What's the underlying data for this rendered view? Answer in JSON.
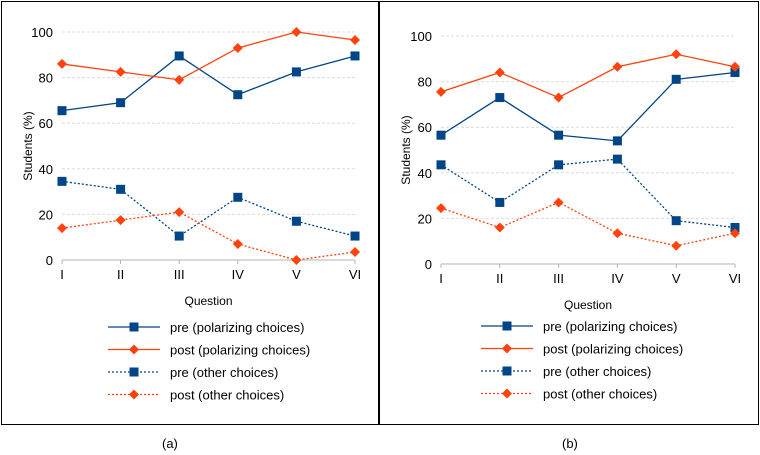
{
  "chart_data": [
    {
      "type": "line",
      "panel_label": "(a)",
      "xlabel": "Question",
      "ylabel": "Students (%)",
      "categories": [
        "I",
        "II",
        "III",
        "IV",
        "V",
        "VI"
      ],
      "ylim": [
        0,
        100
      ],
      "yticks": [
        0,
        20,
        40,
        60,
        80,
        100
      ],
      "grid": true,
      "legend_position": "bottom",
      "series": [
        {
          "name": "pre (polarizing choices)",
          "color": "#004586",
          "marker": "square",
          "dash": "solid",
          "values": [
            65.5,
            69,
            89.5,
            72.5,
            82.5,
            89.5
          ]
        },
        {
          "name": "post (polarizing choices)",
          "color": "#ff420e",
          "marker": "diamond",
          "dash": "solid",
          "values": [
            86,
            82.5,
            79,
            93,
            100,
            96.5
          ]
        },
        {
          "name": "pre (other choices)",
          "color": "#004586",
          "marker": "square",
          "dash": "dotted",
          "values": [
            34.5,
            31,
            10.5,
            27.5,
            17,
            10.5
          ]
        },
        {
          "name": "post (other choices)",
          "color": "#ff420e",
          "marker": "diamond",
          "dash": "dotted",
          "values": [
            14,
            17.5,
            21,
            7,
            0,
            3.5
          ]
        }
      ]
    },
    {
      "type": "line",
      "panel_label": "(b)",
      "xlabel": "Question",
      "ylabel": "Students (%)",
      "categories": [
        "I",
        "II",
        "III",
        "IV",
        "V",
        "VI"
      ],
      "ylim": [
        0,
        100
      ],
      "yticks": [
        0,
        20,
        40,
        60,
        80,
        100
      ],
      "grid": true,
      "legend_position": "bottom",
      "series": [
        {
          "name": "pre (polarizing choices)",
          "color": "#004586",
          "marker": "square",
          "dash": "solid",
          "values": [
            56.5,
            73,
            56.5,
            54,
            81,
            84
          ]
        },
        {
          "name": "post (polarizing choices)",
          "color": "#ff420e",
          "marker": "diamond",
          "dash": "solid",
          "values": [
            75.5,
            84,
            73,
            86.5,
            92,
            86.5
          ]
        },
        {
          "name": "pre (other choices)",
          "color": "#004586",
          "marker": "square",
          "dash": "dotted",
          "values": [
            43.5,
            27,
            43.5,
            46,
            19,
            16
          ]
        },
        {
          "name": "post (other choices)",
          "color": "#ff420e",
          "marker": "diamond",
          "dash": "dotted",
          "values": [
            24.5,
            16,
            27,
            13.5,
            8,
            13.5
          ]
        }
      ]
    }
  ]
}
